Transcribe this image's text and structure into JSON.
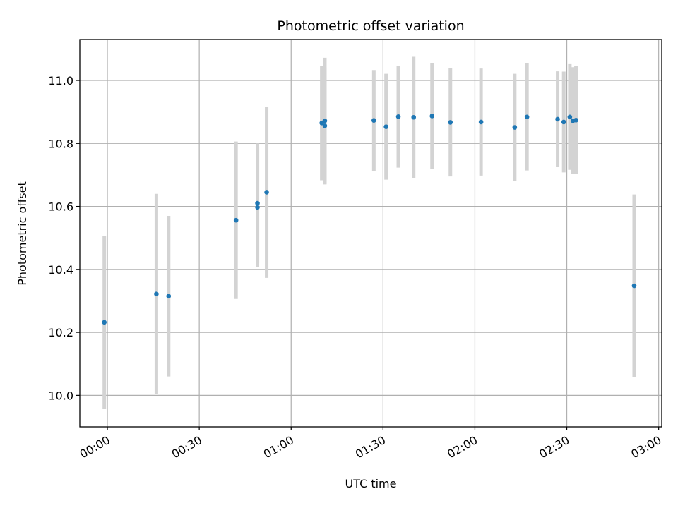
{
  "chart_data": {
    "type": "scatter",
    "title": "Photometric offset variation",
    "xlabel": "UTC time",
    "ylabel": "Photometric offset",
    "xlim": [
      "23:51",
      "03:01"
    ],
    "ylim": [
      9.9,
      11.13
    ],
    "x_ticks": [
      "00:00",
      "00:30",
      "01:00",
      "01:30",
      "02:00",
      "02:30",
      "03:00"
    ],
    "y_ticks": [
      "10.0",
      "10.2",
      "10.4",
      "10.6",
      "10.8",
      "11.0"
    ],
    "grid": true,
    "colors": {
      "point": "#1f77b4",
      "errorbar": "#d3d3d3",
      "grid": "#b0b0b0"
    },
    "points": [
      {
        "x": "23:59",
        "y": 10.232,
        "yerr": 0.275
      },
      {
        "x": "00:16",
        "y": 10.322,
        "yerr": 0.318
      },
      {
        "x": "00:20",
        "y": 10.315,
        "yerr": 0.255
      },
      {
        "x": "00:42",
        "y": 10.556,
        "yerr": 0.25
      },
      {
        "x": "00:49",
        "y": 10.61,
        "yerr": 0.19
      },
      {
        "x": "00:49",
        "y": 10.597,
        "yerr": 0.19
      },
      {
        "x": "00:52",
        "y": 10.645,
        "yerr": 0.272
      },
      {
        "x": "01:10",
        "y": 10.865,
        "yerr": 0.182
      },
      {
        "x": "01:11",
        "y": 10.872,
        "yerr": 0.2
      },
      {
        "x": "01:11",
        "y": 10.856,
        "yerr": 0.186
      },
      {
        "x": "01:27",
        "y": 10.873,
        "yerr": 0.16
      },
      {
        "x": "01:31",
        "y": 10.853,
        "yerr": 0.168
      },
      {
        "x": "01:35",
        "y": 10.885,
        "yerr": 0.162
      },
      {
        "x": "01:40",
        "y": 10.883,
        "yerr": 0.192
      },
      {
        "x": "01:46",
        "y": 10.887,
        "yerr": 0.168
      },
      {
        "x": "01:52",
        "y": 10.867,
        "yerr": 0.172
      },
      {
        "x": "02:02",
        "y": 10.868,
        "yerr": 0.17
      },
      {
        "x": "02:13",
        "y": 10.851,
        "yerr": 0.17
      },
      {
        "x": "02:17",
        "y": 10.884,
        "yerr": 0.17
      },
      {
        "x": "02:27",
        "y": 10.877,
        "yerr": 0.152
      },
      {
        "x": "02:29",
        "y": 10.868,
        "yerr": 0.16
      },
      {
        "x": "02:31",
        "y": 10.884,
        "yerr": 0.168
      },
      {
        "x": "02:32",
        "y": 10.872,
        "yerr": 0.17
      },
      {
        "x": "02:33",
        "y": 10.874,
        "yerr": 0.172
      },
      {
        "x": "02:52",
        "y": 10.348,
        "yerr": 0.29
      }
    ]
  }
}
